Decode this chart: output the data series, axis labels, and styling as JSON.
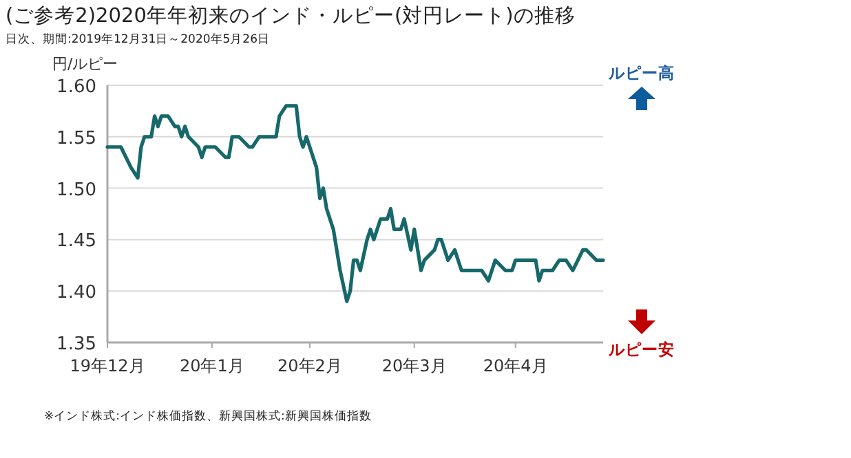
{
  "chart_data": {
    "type": "line",
    "title": "(ご参考2)2020年年初来のインド・ルピー(対円レート)の推移",
    "subtitle": "日次、期間:2019年12月31日～2020年5月26日",
    "ylabel": "円/ルピー",
    "x": [
      "2019-12-31",
      "2020-01-04",
      "2020-01-07",
      "2020-01-09",
      "2020-01-10",
      "2020-01-11",
      "2020-01-13",
      "2020-01-14",
      "2020-01-15",
      "2020-01-16",
      "2020-01-18",
      "2020-01-20",
      "2020-01-21",
      "2020-01-22",
      "2020-01-23",
      "2020-01-24",
      "2020-01-27",
      "2020-01-28",
      "2020-01-29",
      "2020-02-01",
      "2020-02-04",
      "2020-02-05",
      "2020-02-06",
      "2020-02-08",
      "2020-02-11",
      "2020-02-12",
      "2020-02-14",
      "2020-02-19",
      "2020-02-20",
      "2020-02-22",
      "2020-02-25",
      "2020-02-26",
      "2020-02-27",
      "2020-02-28",
      "2020-02-29",
      "2020-03-02",
      "2020-03-03",
      "2020-03-04",
      "2020-03-05",
      "2020-03-07",
      "2020-03-09",
      "2020-03-11",
      "2020-03-12",
      "2020-03-13",
      "2020-03-14",
      "2020-03-15",
      "2020-03-17",
      "2020-03-18",
      "2020-03-19",
      "2020-03-21",
      "2020-03-23",
      "2020-03-24",
      "2020-03-25",
      "2020-03-27",
      "2020-03-28",
      "2020-03-30",
      "2020-03-31",
      "2020-04-02",
      "2020-04-03",
      "2020-04-06",
      "2020-04-07",
      "2020-04-08",
      "2020-04-10",
      "2020-04-12",
      "2020-04-14",
      "2020-04-20",
      "2020-04-22",
      "2020-04-24",
      "2020-04-27",
      "2020-04-29",
      "2020-04-30",
      "2020-05-06",
      "2020-05-07",
      "2020-05-08",
      "2020-05-11",
      "2020-05-13",
      "2020-05-15",
      "2020-05-17",
      "2020-05-20",
      "2020-05-21",
      "2020-05-24",
      "2020-05-26"
    ],
    "series": [
      {
        "color": "#17686b",
        "values": [
          1.54,
          1.54,
          1.52,
          1.51,
          1.54,
          1.55,
          1.55,
          1.57,
          1.56,
          1.57,
          1.57,
          1.56,
          1.56,
          1.55,
          1.56,
          1.55,
          1.54,
          1.53,
          1.54,
          1.54,
          1.53,
          1.53,
          1.55,
          1.55,
          1.54,
          1.54,
          1.55,
          1.55,
          1.57,
          1.58,
          1.58,
          1.55,
          1.54,
          1.55,
          1.54,
          1.52,
          1.49,
          1.5,
          1.48,
          1.46,
          1.42,
          1.39,
          1.4,
          1.43,
          1.43,
          1.42,
          1.45,
          1.46,
          1.45,
          1.47,
          1.47,
          1.48,
          1.46,
          1.46,
          1.47,
          1.44,
          1.46,
          1.42,
          1.43,
          1.44,
          1.45,
          1.45,
          1.43,
          1.44,
          1.42,
          1.42,
          1.41,
          1.43,
          1.42,
          1.42,
          1.43,
          1.43,
          1.41,
          1.42,
          1.42,
          1.43,
          1.43,
          1.42,
          1.44,
          1.44,
          1.43,
          1.43
        ]
      }
    ],
    "xlim": [
      "2019-12-31",
      "2020-05-26"
    ],
    "xticks": [
      {
        "value": "2019-12-31",
        "label": "19年12月"
      },
      {
        "value": "2020-01-31",
        "label": "20年1月"
      },
      {
        "value": "2020-02-29",
        "label": "20年2月"
      },
      {
        "value": "2020-03-31",
        "label": "20年3月"
      },
      {
        "value": "2020-04-30",
        "label": "20年4月"
      }
    ],
    "ylim": [
      1.35,
      1.6
    ],
    "yticks": [
      {
        "value": 1.35,
        "label": "1.35"
      },
      {
        "value": 1.4,
        "label": "1.40"
      },
      {
        "value": 1.45,
        "label": "1.45"
      },
      {
        "value": 1.5,
        "label": "1.50"
      },
      {
        "value": 1.55,
        "label": "1.55"
      },
      {
        "value": 1.6,
        "label": "1.60"
      }
    ],
    "grid": "y",
    "marker": "none",
    "line_style": "solid",
    "annotations": [
      "ルピー高",
      "ルピー安",
      "※インド株式:インド株価指数、新興国株式:新興国株価指数"
    ]
  }
}
